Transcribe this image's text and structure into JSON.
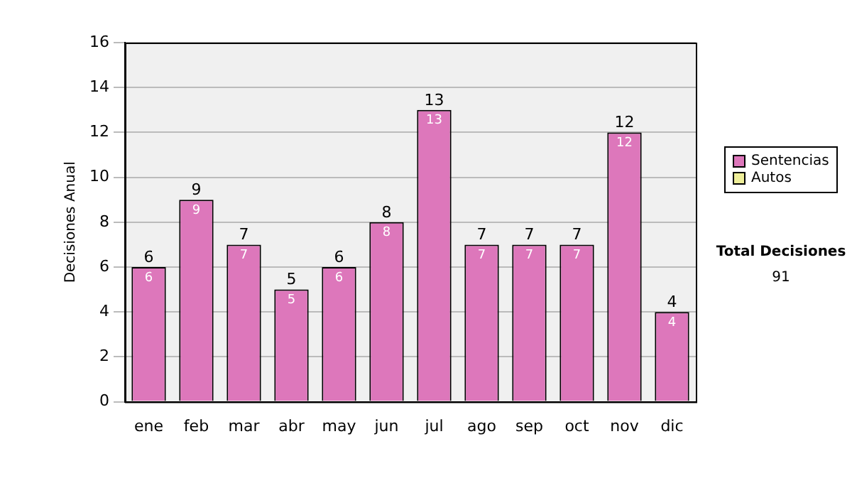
{
  "chart_data": {
    "type": "bar",
    "stacked": true,
    "ylabel": "Decisiones Anual",
    "categories": [
      "ene",
      "feb",
      "mar",
      "abr",
      "may",
      "jun",
      "jul",
      "ago",
      "sep",
      "oct",
      "nov",
      "dic"
    ],
    "series": [
      {
        "name": "Sentencias",
        "color": "#dd77bb",
        "values": [
          6,
          9,
          7,
          5,
          6,
          8,
          13,
          7,
          7,
          7,
          12,
          4
        ],
        "value_labels": [
          "6",
          "9",
          "7",
          "5",
          "6",
          "8",
          "13",
          "7",
          "7",
          "7",
          "12",
          "4"
        ]
      },
      {
        "name": "Autos",
        "color": "#eeee99",
        "values": [
          0,
          0,
          0,
          0,
          0,
          0,
          0,
          0,
          0,
          0,
          0,
          0
        ]
      }
    ],
    "totals": [
      "6",
      "9",
      "7",
      "5",
      "6",
      "8",
      "13",
      "7",
      "7",
      "7",
      "12",
      "4"
    ],
    "ylim": [
      0,
      16
    ],
    "yticks": [
      0,
      2,
      4,
      6,
      8,
      10,
      12,
      14,
      16
    ],
    "grid": "y",
    "legend": "right",
    "annotations": [
      "Total Decisiones",
      "91"
    ]
  }
}
